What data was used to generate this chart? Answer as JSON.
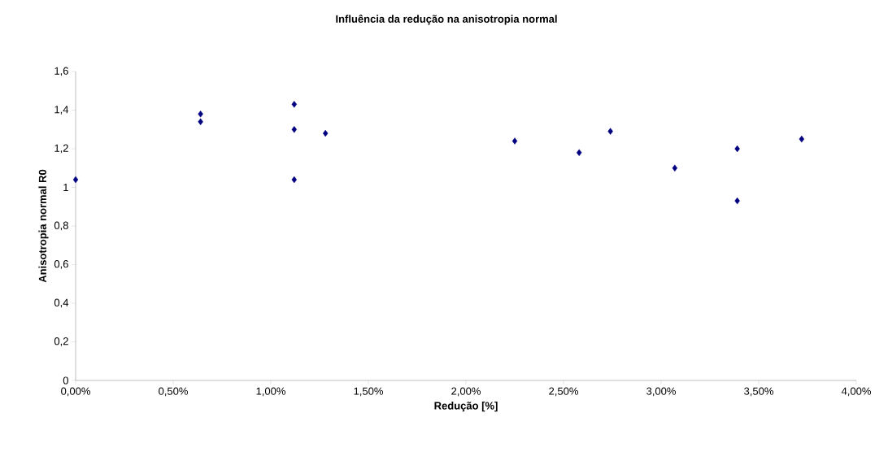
{
  "chart_data": {
    "type": "scatter",
    "title": "Influência da redução na anisotropia normal",
    "xlabel": "Redução [%]",
    "ylabel": "Anisotropia normal R0",
    "x": [
      0,
      0.64,
      0.64,
      1.12,
      1.12,
      1.12,
      1.28,
      2.25,
      2.58,
      2.74,
      3.07,
      3.39,
      3.39,
      3.72
    ],
    "values": [
      1.04,
      1.38,
      1.34,
      1.43,
      1.3,
      1.04,
      1.28,
      1.24,
      1.18,
      1.29,
      1.1,
      1.2,
      0.93,
      1.25
    ],
    "color": "#000080",
    "marker": "diamond",
    "xlim": [
      0,
      4
    ],
    "ylim": [
      0,
      1.6
    ],
    "xticks": [
      {
        "value": 0,
        "label": "0,00%"
      },
      {
        "value": 0.5,
        "label": "0,50%"
      },
      {
        "value": 1,
        "label": "1,00%"
      },
      {
        "value": 1.5,
        "label": "1,50%"
      },
      {
        "value": 2,
        "label": "2,00%"
      },
      {
        "value": 2.5,
        "label": "2,50%"
      },
      {
        "value": 3,
        "label": "3,00%"
      },
      {
        "value": 3.5,
        "label": "3,50%"
      },
      {
        "value": 4,
        "label": "4,00%"
      }
    ],
    "yticks": [
      0,
      {
        "value": 0.2,
        "label": "0,2"
      },
      {
        "value": 0.4,
        "label": "0,4"
      },
      {
        "value": 0.6,
        "label": "0,6"
      },
      {
        "value": 0.8,
        "label": "0,8"
      },
      1,
      {
        "value": 1.2,
        "label": "1,2"
      },
      {
        "value": 1.4,
        "label": "1,4"
      },
      {
        "value": 1.6,
        "label": "1,6"
      }
    ]
  }
}
